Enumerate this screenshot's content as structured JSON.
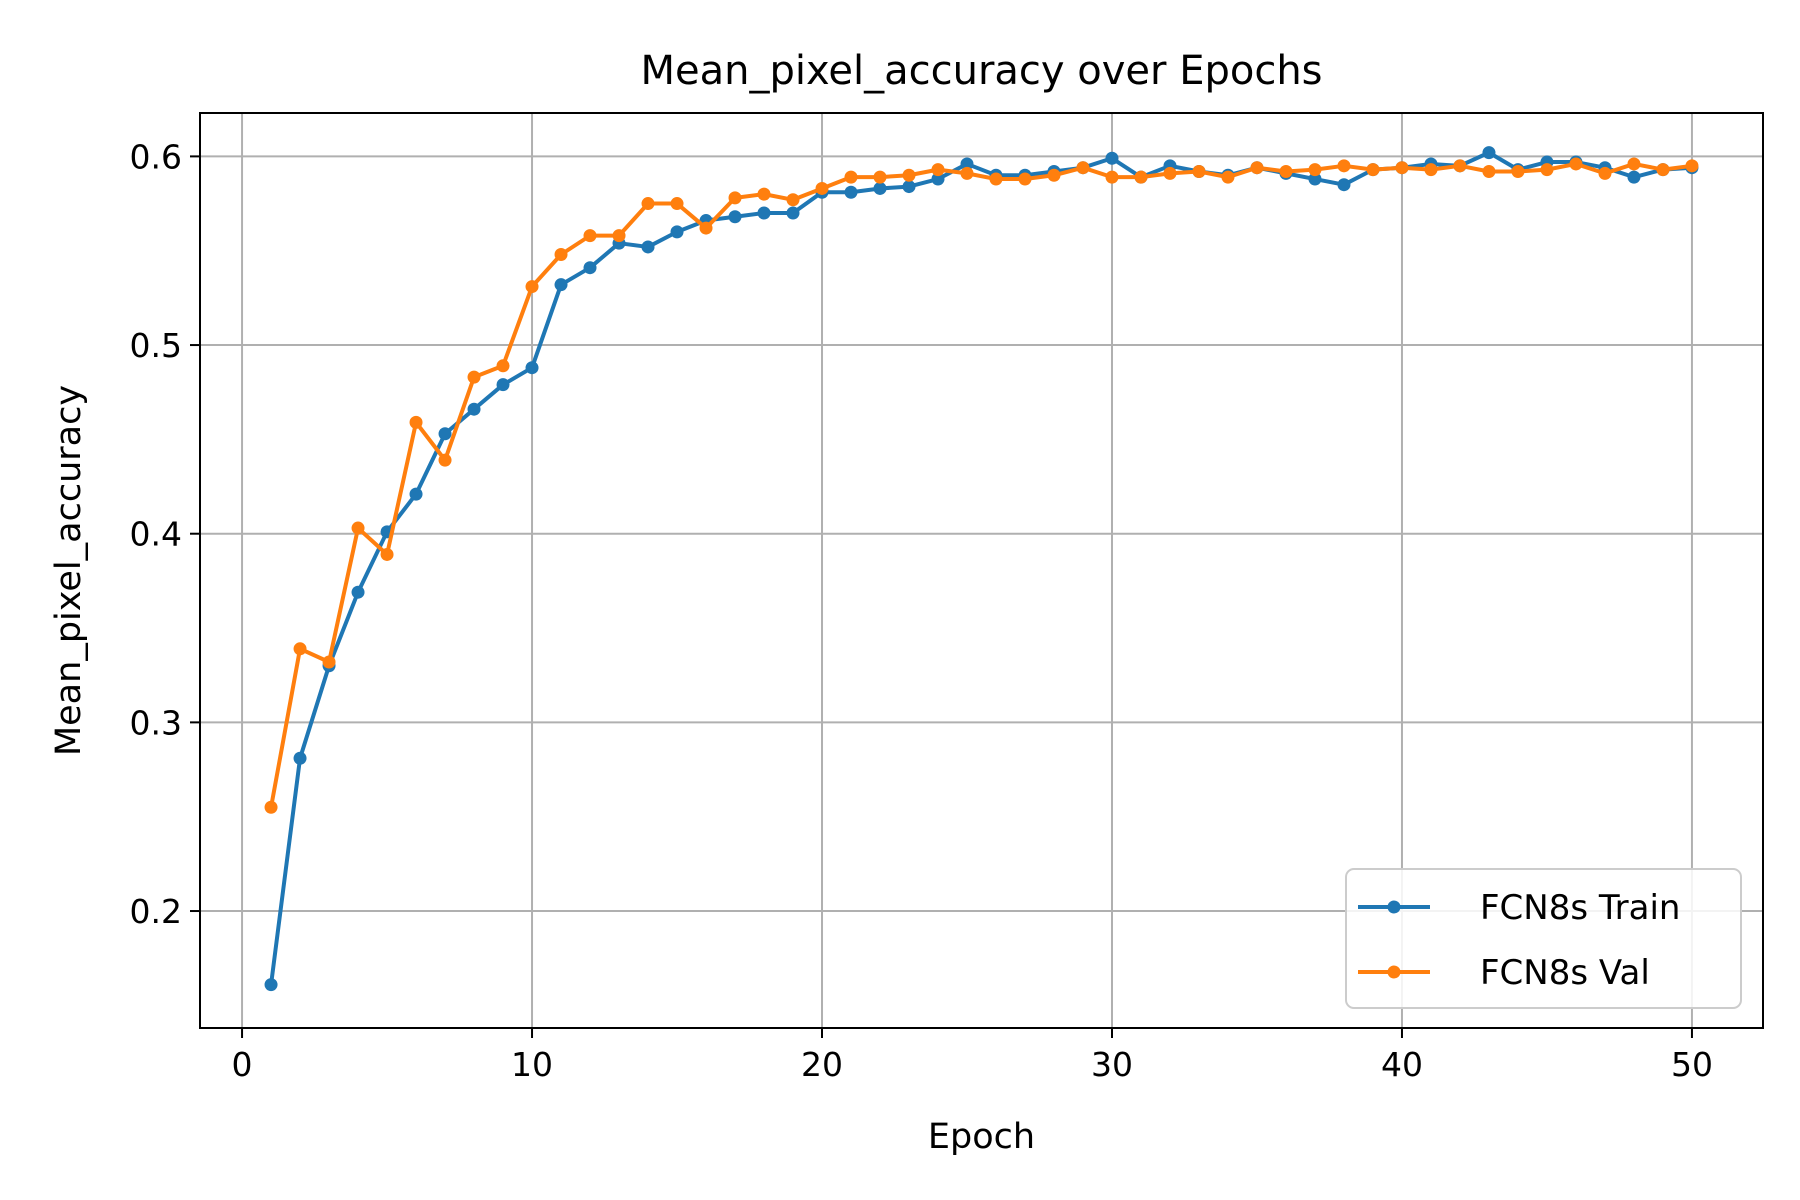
{
  "chart_data": {
    "type": "line",
    "title": "Mean_pixel_accuracy over Epochs",
    "xlabel": "Epoch",
    "ylabel": "Mean_pixel_accuracy",
    "xlim": [
      -1.45,
      52.45
    ],
    "ylim": [
      0.138,
      0.623
    ],
    "xticks": [
      0,
      10,
      20,
      30,
      40,
      50
    ],
    "yticks": [
      0.2,
      0.3,
      0.4,
      0.5,
      0.6
    ],
    "xtick_labels": [
      "0",
      "10",
      "20",
      "30",
      "40",
      "50"
    ],
    "ytick_labels": [
      "0.2",
      "0.3",
      "0.4",
      "0.5",
      "0.6"
    ],
    "grid": true,
    "legend_position": "lower-right",
    "x": [
      1,
      2,
      3,
      4,
      5,
      6,
      7,
      8,
      9,
      10,
      11,
      12,
      13,
      14,
      15,
      16,
      17,
      18,
      19,
      20,
      21,
      22,
      23,
      24,
      25,
      26,
      27,
      28,
      29,
      30,
      31,
      32,
      33,
      34,
      35,
      36,
      37,
      38,
      39,
      40,
      41,
      42,
      43,
      44,
      45,
      46,
      47,
      48,
      49,
      50
    ],
    "series": [
      {
        "name": "FCN8s Train",
        "color": "#1f77b4",
        "values": [
          0.161,
          0.281,
          0.33,
          0.369,
          0.401,
          0.421,
          0.453,
          0.466,
          0.479,
          0.488,
          0.532,
          0.541,
          0.554,
          0.552,
          0.56,
          0.566,
          0.568,
          0.57,
          0.57,
          0.581,
          0.581,
          0.583,
          0.584,
          0.588,
          0.596,
          0.59,
          0.59,
          0.592,
          0.594,
          0.599,
          0.589,
          0.595,
          0.592,
          0.59,
          0.594,
          0.591,
          0.588,
          0.585,
          0.593,
          0.594,
          0.596,
          0.595,
          0.602,
          0.593,
          0.597,
          0.597,
          0.594,
          0.589,
          0.593,
          0.594
        ]
      },
      {
        "name": "FCN8s Val",
        "color": "#ff7f0e",
        "values": [
          0.255,
          0.339,
          0.332,
          0.403,
          0.389,
          0.459,
          0.439,
          0.483,
          0.489,
          0.531,
          0.548,
          0.558,
          0.558,
          0.575,
          0.575,
          0.562,
          0.578,
          0.58,
          0.577,
          0.583,
          0.589,
          0.589,
          0.59,
          0.593,
          0.591,
          0.588,
          0.588,
          0.59,
          0.594,
          0.589,
          0.589,
          0.591,
          0.592,
          0.589,
          0.594,
          0.592,
          0.593,
          0.595,
          0.593,
          0.594,
          0.593,
          0.595,
          0.592,
          0.592,
          0.593,
          0.596,
          0.591,
          0.596,
          0.593,
          0.595
        ]
      }
    ]
  }
}
